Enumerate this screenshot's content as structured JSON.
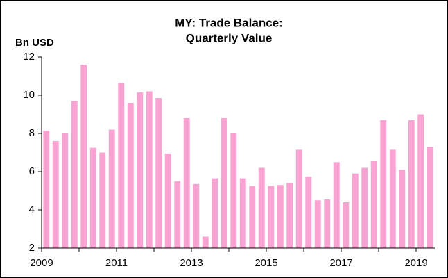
{
  "chart_data": {
    "type": "bar",
    "title": [
      "MY: Trade Balance:",
      "Quarterly Value"
    ],
    "y_label": "Bn USD",
    "categories": [
      "2009",
      null,
      null,
      null,
      null,
      null,
      null,
      null,
      "2011",
      null,
      null,
      null,
      null,
      null,
      null,
      null,
      "2013",
      null,
      null,
      null,
      null,
      null,
      null,
      null,
      "2015",
      null,
      null,
      null,
      null,
      null,
      null,
      null,
      "2017",
      null,
      null,
      null,
      null,
      null,
      null,
      null,
      "2019",
      null
    ],
    "values": [
      8.15,
      7.6,
      8.0,
      9.7,
      11.6,
      7.25,
      7.0,
      8.2,
      10.65,
      9.6,
      10.15,
      10.2,
      9.85,
      6.95,
      5.5,
      8.8,
      5.35,
      2.6,
      5.65,
      8.8,
      8.0,
      5.65,
      5.25,
      6.2,
      5.25,
      5.3,
      5.4,
      7.15,
      5.75,
      4.5,
      4.55,
      6.5,
      4.4,
      5.9,
      6.2,
      6.55,
      8.7,
      7.15,
      6.1,
      8.7,
      9.0,
      7.3
    ],
    "color": "#f9a3d2",
    "ylim": [
      2,
      12
    ],
    "yticks": [
      2,
      4,
      6,
      8,
      10,
      12
    ],
    "grid": false
  }
}
